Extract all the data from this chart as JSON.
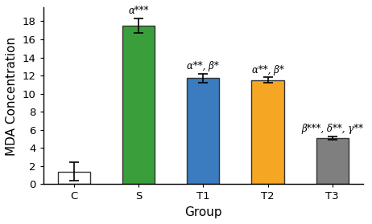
{
  "categories": [
    "C",
    "S",
    "T1",
    "T2",
    "T3"
  ],
  "values": [
    1.4,
    17.5,
    11.7,
    11.5,
    5.1
  ],
  "errors": [
    1.0,
    0.8,
    0.5,
    0.3,
    0.2
  ],
  "bar_colors": [
    "#ffffff",
    "#3a9e3a",
    "#3b7bbf",
    "#f5a623",
    "#7f7f7f"
  ],
  "bar_edgecolors": [
    "#333333",
    "#333333",
    "#333333",
    "#333333",
    "#333333"
  ],
  "annotations": [
    "",
    "α***",
    "α**, β*",
    "α**, β*",
    "β***, δ**, γ**"
  ],
  "ylabel": "MDA Concentration",
  "xlabel": "Group",
  "ylim": [
    0,
    19.5
  ],
  "yticks": [
    0,
    2,
    4,
    6,
    8,
    10,
    12,
    14,
    16,
    18
  ],
  "annotation_fontsize": 8.5,
  "axis_fontsize": 11,
  "tick_fontsize": 9.5
}
